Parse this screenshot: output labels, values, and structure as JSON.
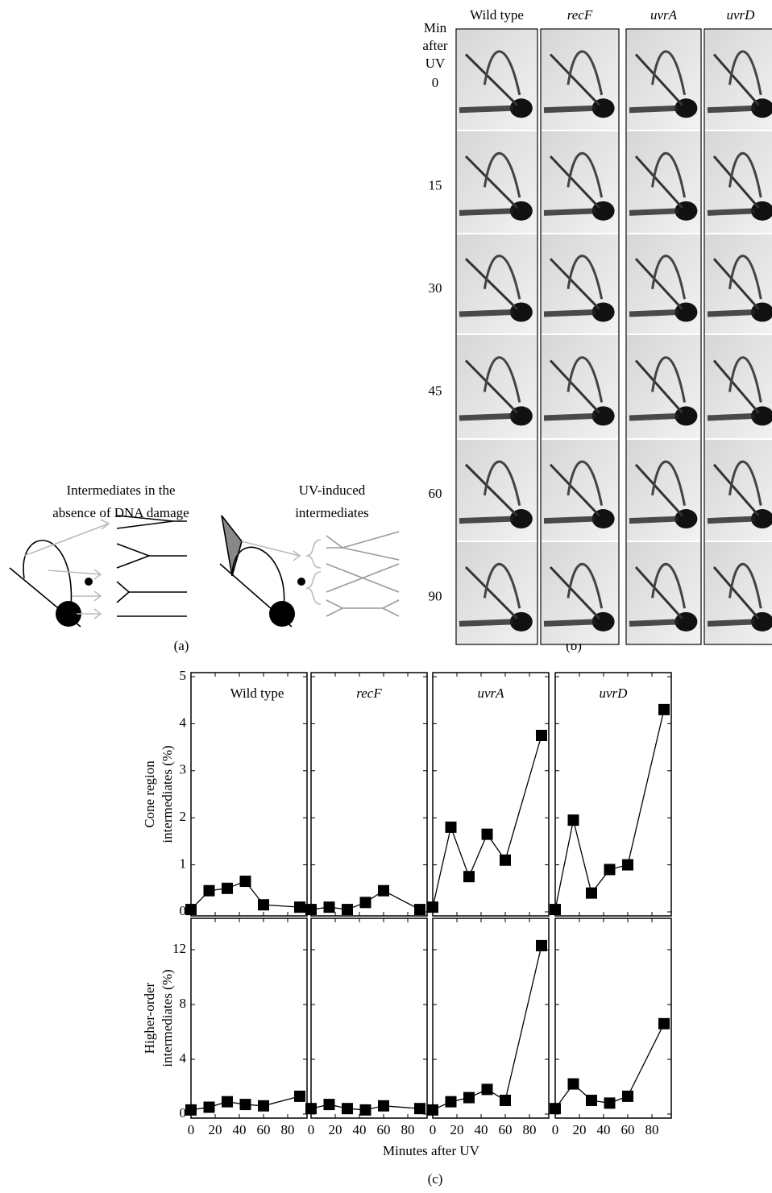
{
  "panel_a": {
    "label": "(a)",
    "left_caption": [
      "Intermediates in the",
      "absence of DNA damage"
    ],
    "right_caption": [
      "UV-induced",
      "intermediates"
    ]
  },
  "panel_b": {
    "label": "(b)",
    "row_header": [
      "Min",
      "after",
      "UV"
    ],
    "columns": [
      "Wild type",
      "recF",
      "uvrA",
      "uvrD"
    ],
    "rows": [
      "0",
      "15",
      "30",
      "45",
      "60",
      "90"
    ]
  },
  "panel_c": {
    "label": "(c)",
    "xlabel": "Minutes after UV"
  },
  "chart_data": [
    {
      "type": "line",
      "title": "Wild type",
      "ylabel": [
        "Cone region",
        "intermediates (%)"
      ],
      "x": [
        0,
        15,
        30,
        45,
        60,
        90
      ],
      "series": [
        {
          "color": "#000000",
          "marker": "square",
          "values": [
            0.05,
            0.45,
            0.5,
            0.65,
            0.15,
            0.1
          ]
        }
      ],
      "xlim": [
        0,
        96
      ],
      "ylim": [
        0,
        5
      ],
      "yticks": [
        0,
        1,
        2,
        3,
        4,
        5
      ]
    },
    {
      "type": "line",
      "title": "recF",
      "x": [
        0,
        15,
        30,
        45,
        60,
        90
      ],
      "series": [
        {
          "color": "#000000",
          "marker": "square",
          "values": [
            0.05,
            0.1,
            0.05,
            0.2,
            0.45,
            0.05
          ]
        }
      ],
      "xlim": [
        0,
        96
      ],
      "ylim": [
        0,
        5
      ]
    },
    {
      "type": "line",
      "title": "uvrA",
      "x": [
        0,
        15,
        30,
        45,
        60,
        90
      ],
      "series": [
        {
          "color": "#000000",
          "marker": "square",
          "values": [
            0.1,
            1.8,
            0.75,
            1.65,
            1.1,
            3.75
          ]
        }
      ],
      "xlim": [
        0,
        96
      ],
      "ylim": [
        0,
        5
      ]
    },
    {
      "type": "line",
      "title": "uvrD",
      "x": [
        0,
        15,
        30,
        45,
        60,
        90
      ],
      "series": [
        {
          "color": "#000000",
          "marker": "square",
          "values": [
            0.05,
            1.95,
            0.4,
            0.9,
            1.0,
            4.3
          ]
        }
      ],
      "xlim": [
        0,
        96
      ],
      "ylim": [
        0,
        5
      ]
    },
    {
      "type": "line",
      "ylabel": [
        "Higher-order",
        "intermediates (%)"
      ],
      "x": [
        0,
        15,
        30,
        45,
        60,
        90
      ],
      "series": [
        {
          "color": "#000000",
          "marker": "square",
          "values": [
            0.3,
            0.5,
            0.9,
            0.7,
            0.6,
            1.3
          ]
        }
      ],
      "xlim": [
        0,
        96
      ],
      "ylim": [
        0,
        14
      ],
      "yticks": [
        0,
        4,
        8,
        12
      ],
      "xticks": [
        0,
        20,
        40,
        60,
        80
      ]
    },
    {
      "type": "line",
      "x": [
        0,
        15,
        30,
        45,
        60,
        90
      ],
      "series": [
        {
          "color": "#000000",
          "marker": "square",
          "values": [
            0.4,
            0.7,
            0.4,
            0.3,
            0.6,
            0.4
          ]
        }
      ],
      "xlim": [
        0,
        96
      ],
      "ylim": [
        0,
        14
      ],
      "xticks": [
        0,
        20,
        40,
        60,
        80
      ]
    },
    {
      "type": "line",
      "x": [
        0,
        15,
        30,
        45,
        60,
        90
      ],
      "series": [
        {
          "color": "#000000",
          "marker": "square",
          "values": [
            0.3,
            0.9,
            1.2,
            1.8,
            1.0,
            12.3
          ]
        }
      ],
      "xlim": [
        0,
        96
      ],
      "ylim": [
        0,
        14
      ],
      "xticks": [
        0,
        20,
        40,
        60,
        80
      ]
    },
    {
      "type": "line",
      "x": [
        0,
        15,
        30,
        45,
        60,
        90
      ],
      "series": [
        {
          "color": "#000000",
          "marker": "square",
          "values": [
            0.4,
            2.2,
            1.0,
            0.8,
            1.3,
            6.6
          ]
        }
      ],
      "xlim": [
        0,
        96
      ],
      "ylim": [
        0,
        14
      ],
      "xticks": [
        0,
        20,
        40,
        60,
        80
      ]
    }
  ]
}
